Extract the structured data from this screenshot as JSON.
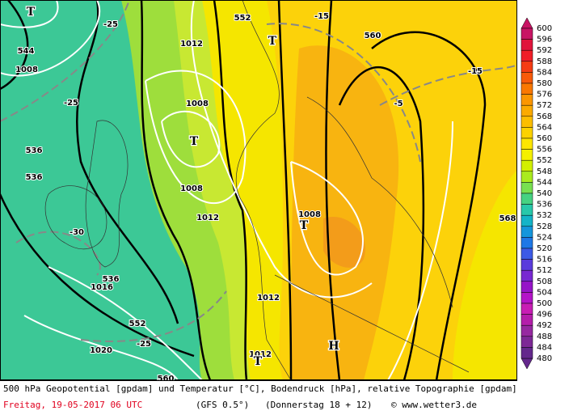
{
  "map": {
    "labels": [
      "544",
      "552",
      "560",
      "568",
      "1008",
      "1012",
      "1008",
      "1008",
      "1012",
      "1008",
      "1012",
      "1016",
      "1020",
      "1012",
      "-25",
      "-25",
      "-30",
      "-25",
      "-15",
      "-15",
      "-5",
      "536",
      "536",
      "536",
      "552",
      "560",
      "T",
      "T",
      "T",
      "T",
      "T",
      "H"
    ]
  },
  "colorbar": [
    600,
    596,
    592,
    588,
    584,
    580,
    576,
    572,
    568,
    564,
    560,
    556,
    552,
    548,
    544,
    540,
    536,
    532,
    528,
    524,
    520,
    516,
    512,
    508,
    504,
    500,
    496,
    492,
    488,
    484,
    480
  ],
  "caption": {
    "line1": "500 hPa Geopotential [gpdam] und Temperatur [°C], Bodendruck [hPa], relative Topographie [gpdam]",
    "date": "Freitag, 19-05-2017  06 UTC",
    "model": "(GFS 0.5°)",
    "run": "(Donnerstag 18 + 12)",
    "credit": "© www.wetter3.de"
  }
}
